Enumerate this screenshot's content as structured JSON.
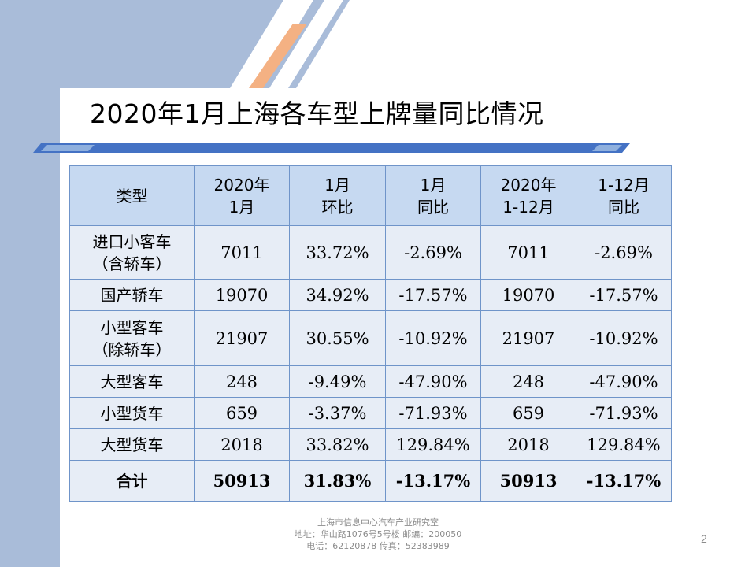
{
  "slide": {
    "title": "2020年1月上海各车型上牌量同比情况",
    "page_number": "2",
    "colors": {
      "accent_blue": "#4472c4",
      "accent_orange": "#f4b183",
      "band": "#a9bcd9",
      "header_fill": "#c6d9f1",
      "cell_fill": "#e7edf6"
    }
  },
  "table": {
    "headers": [
      {
        "line1": "类型",
        "line2": ""
      },
      {
        "line1": "2020年",
        "line2": "1月"
      },
      {
        "line1": "1月",
        "line2": "环比"
      },
      {
        "line1": "1月",
        "line2": "同比"
      },
      {
        "line1": "2020年",
        "line2": "1-12月"
      },
      {
        "line1": "1-12月",
        "line2": "同比"
      }
    ],
    "rows": [
      {
        "line1": "进口小客车",
        "line2": "（含轿车）",
        "cells": [
          "7011",
          "33.72%",
          "-2.69%",
          "7011",
          "-2.69%"
        ]
      },
      {
        "line1": "国产轿车",
        "line2": "",
        "cells": [
          "19070",
          "34.92%",
          "-17.57%",
          "19070",
          "-17.57%"
        ]
      },
      {
        "line1": "小型客车",
        "line2": "（除轿车）",
        "cells": [
          "21907",
          "30.55%",
          "-10.92%",
          "21907",
          "-10.92%"
        ]
      },
      {
        "line1": "大型客车",
        "line2": "",
        "cells": [
          "248",
          "-9.49%",
          "-47.90%",
          "248",
          "-47.90%"
        ]
      },
      {
        "line1": "小型货车",
        "line2": "",
        "cells": [
          "659",
          "-3.37%",
          "-71.93%",
          "659",
          "-71.93%"
        ]
      },
      {
        "line1": "大型货车",
        "line2": "",
        "cells": [
          "2018",
          "33.82%",
          "129.84%",
          "2018",
          "129.84%"
        ]
      },
      {
        "line1": "合计",
        "line2": "",
        "cells": [
          "50913",
          "31.83%",
          "-13.17%",
          "50913",
          "-13.17%"
        ]
      }
    ]
  },
  "footer": {
    "line1": "上海市信息中心汽车产业研究室",
    "line2": "地址：华山路1076号5号楼   邮编：200050",
    "line3": "电话：62120878  传真：52383989"
  }
}
